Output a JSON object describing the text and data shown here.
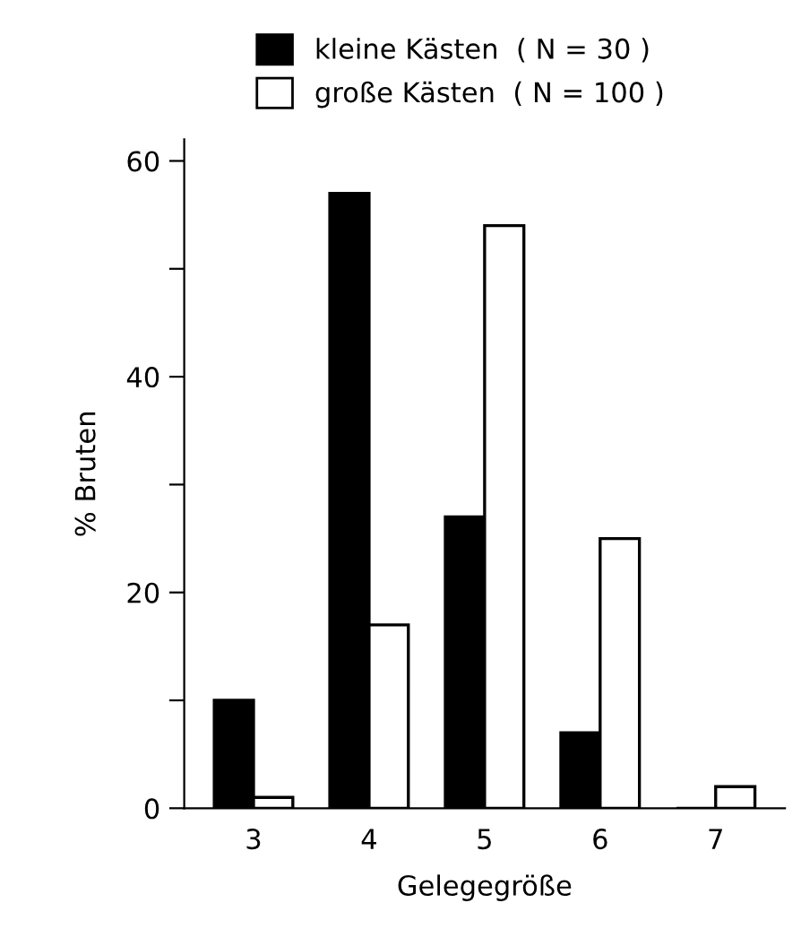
{
  "chart_data": {
    "type": "bar",
    "xlabel": "Gelegegröße",
    "ylabel": "% Bruten",
    "categories": [
      "3",
      "4",
      "5",
      "6",
      "7"
    ],
    "series": [
      {
        "name": "kleine Kästen  ( N = 30 )",
        "color": "#000000",
        "values": [
          10,
          57,
          27,
          7,
          0
        ]
      },
      {
        "name": "große Kästen  ( N = 100 )",
        "color": "#ffffff",
        "values": [
          1,
          17,
          54,
          25,
          2
        ]
      }
    ],
    "ylim": [
      0,
      62
    ],
    "yticks": [
      0,
      {
        "value": 10,
        "label": null
      },
      20,
      {
        "value": 30,
        "label": null
      },
      40,
      {
        "value": 50,
        "label": null
      },
      60
    ],
    "legend": "top",
    "grid": false
  }
}
